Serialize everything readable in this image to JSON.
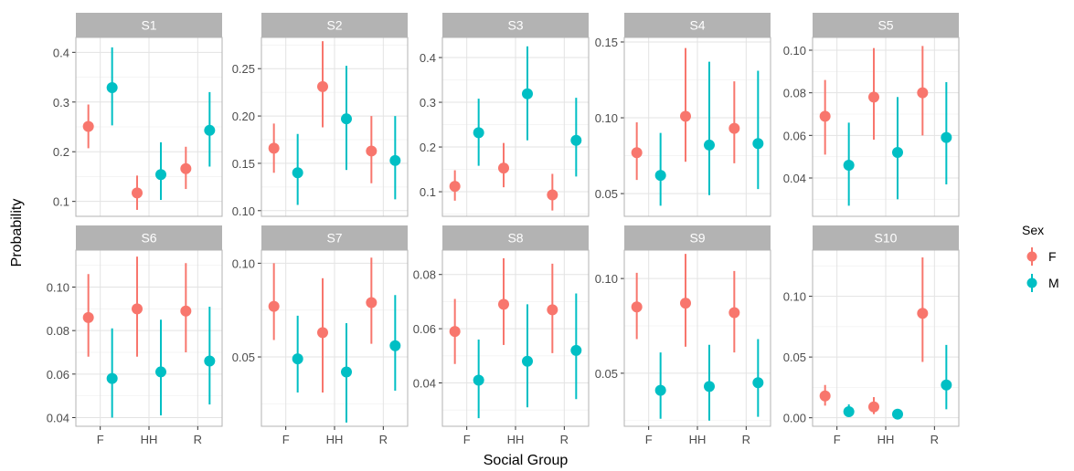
{
  "figure": {
    "ylabel": "Probability",
    "xlabel": "Social Group",
    "legend_title": "Sex",
    "legend_items": [
      {
        "label": "F",
        "color": "#F8766D"
      },
      {
        "label": "M",
        "color": "#00BFC4"
      }
    ]
  },
  "chart_data": {
    "type": "scatter",
    "subtype": "pointrange-faceted",
    "x_categories": [
      "F",
      "HH",
      "R"
    ],
    "series_names": [
      "F",
      "M"
    ],
    "legend_placement": "right",
    "grid": true,
    "panels": [
      {
        "title": "S1",
        "ylim": [
          0.07,
          0.43
        ],
        "yticks": [
          0.1,
          0.2,
          0.3,
          0.4
        ],
        "tick_labels": [
          "0.1",
          "0.2",
          "0.3",
          "0.4"
        ],
        "F": [
          {
            "x": "F",
            "y": 0.251,
            "lo": 0.207,
            "hi": 0.295
          },
          {
            "x": "HH",
            "y": 0.117,
            "lo": 0.083,
            "hi": 0.152
          },
          {
            "x": "R",
            "y": 0.166,
            "lo": 0.125,
            "hi": 0.21
          }
        ],
        "M": [
          {
            "x": "F",
            "y": 0.329,
            "lo": 0.253,
            "hi": 0.41
          },
          {
            "x": "HH",
            "y": 0.154,
            "lo": 0.103,
            "hi": 0.219
          },
          {
            "x": "R",
            "y": 0.243,
            "lo": 0.17,
            "hi": 0.32
          }
        ]
      },
      {
        "title": "S2",
        "ylim": [
          0.094,
          0.283
        ],
        "yticks": [
          0.1,
          0.15,
          0.2,
          0.25
        ],
        "tick_labels": [
          "0.10",
          "0.15",
          "0.20",
          "0.25"
        ],
        "F": [
          {
            "x": "F",
            "y": 0.166,
            "lo": 0.14,
            "hi": 0.192
          },
          {
            "x": "HH",
            "y": 0.231,
            "lo": 0.188,
            "hi": 0.279
          },
          {
            "x": "R",
            "y": 0.163,
            "lo": 0.129,
            "hi": 0.2
          }
        ],
        "M": [
          {
            "x": "F",
            "y": 0.14,
            "lo": 0.106,
            "hi": 0.181
          },
          {
            "x": "HH",
            "y": 0.197,
            "lo": 0.143,
            "hi": 0.253
          },
          {
            "x": "R",
            "y": 0.153,
            "lo": 0.112,
            "hi": 0.2
          }
        ]
      },
      {
        "title": "S3",
        "ylim": [
          0.045,
          0.445
        ],
        "yticks": [
          0.1,
          0.2,
          0.3,
          0.4
        ],
        "tick_labels": [
          "0.1",
          "0.2",
          "0.3",
          "0.4"
        ],
        "F": [
          {
            "x": "F",
            "y": 0.112,
            "lo": 0.08,
            "hi": 0.148
          },
          {
            "x": "HH",
            "y": 0.153,
            "lo": 0.11,
            "hi": 0.209
          },
          {
            "x": "R",
            "y": 0.093,
            "lo": 0.058,
            "hi": 0.14
          }
        ],
        "M": [
          {
            "x": "F",
            "y": 0.232,
            "lo": 0.158,
            "hi": 0.308
          },
          {
            "x": "HH",
            "y": 0.319,
            "lo": 0.215,
            "hi": 0.425
          },
          {
            "x": "R",
            "y": 0.215,
            "lo": 0.134,
            "hi": 0.31
          }
        ]
      },
      {
        "title": "S4",
        "ylim": [
          0.035,
          0.153
        ],
        "yticks": [
          0.05,
          0.1,
          0.15
        ],
        "tick_labels": [
          "0.05",
          "0.10",
          "0.15"
        ],
        "F": [
          {
            "x": "F",
            "y": 0.077,
            "lo": 0.059,
            "hi": 0.097
          },
          {
            "x": "HH",
            "y": 0.101,
            "lo": 0.071,
            "hi": 0.146
          },
          {
            "x": "R",
            "y": 0.093,
            "lo": 0.07,
            "hi": 0.124
          }
        ],
        "M": [
          {
            "x": "F",
            "y": 0.062,
            "lo": 0.042,
            "hi": 0.09
          },
          {
            "x": "HH",
            "y": 0.082,
            "lo": 0.049,
            "hi": 0.137
          },
          {
            "x": "R",
            "y": 0.083,
            "lo": 0.053,
            "hi": 0.131
          }
        ]
      },
      {
        "title": "S5",
        "ylim": [
          0.022,
          0.106
        ],
        "yticks": [
          0.04,
          0.06,
          0.08,
          0.1
        ],
        "tick_labels": [
          "0.04",
          "0.06",
          "0.08",
          "0.10"
        ],
        "F": [
          {
            "x": "F",
            "y": 0.069,
            "lo": 0.051,
            "hi": 0.086
          },
          {
            "x": "HH",
            "y": 0.078,
            "lo": 0.058,
            "hi": 0.101
          },
          {
            "x": "R",
            "y": 0.08,
            "lo": 0.06,
            "hi": 0.102
          }
        ],
        "M": [
          {
            "x": "F",
            "y": 0.046,
            "lo": 0.027,
            "hi": 0.066
          },
          {
            "x": "HH",
            "y": 0.052,
            "lo": 0.03,
            "hi": 0.078
          },
          {
            "x": "R",
            "y": 0.059,
            "lo": 0.037,
            "hi": 0.085
          }
        ]
      },
      {
        "title": "S6",
        "ylim": [
          0.036,
          0.117
        ],
        "yticks": [
          0.04,
          0.06,
          0.08,
          0.1
        ],
        "tick_labels": [
          "0.04",
          "0.06",
          "0.08",
          "0.10"
        ],
        "F": [
          {
            "x": "F",
            "y": 0.086,
            "lo": 0.068,
            "hi": 0.106
          },
          {
            "x": "HH",
            "y": 0.09,
            "lo": 0.068,
            "hi": 0.114
          },
          {
            "x": "R",
            "y": 0.089,
            "lo": 0.07,
            "hi": 0.111
          }
        ],
        "M": [
          {
            "x": "F",
            "y": 0.058,
            "lo": 0.04,
            "hi": 0.081
          },
          {
            "x": "HH",
            "y": 0.061,
            "lo": 0.041,
            "hi": 0.085
          },
          {
            "x": "R",
            "y": 0.066,
            "lo": 0.046,
            "hi": 0.091
          }
        ]
      },
      {
        "title": "S7",
        "ylim": [
          0.013,
          0.107
        ],
        "yticks": [
          0.05,
          0.1
        ],
        "tick_labels": [
          "0.05",
          "0.10"
        ],
        "F": [
          {
            "x": "F",
            "y": 0.077,
            "lo": 0.059,
            "hi": 0.1
          },
          {
            "x": "HH",
            "y": 0.063,
            "lo": 0.031,
            "hi": 0.092
          },
          {
            "x": "R",
            "y": 0.079,
            "lo": 0.057,
            "hi": 0.103
          }
        ],
        "M": [
          {
            "x": "F",
            "y": 0.049,
            "lo": 0.031,
            "hi": 0.072
          },
          {
            "x": "HH",
            "y": 0.042,
            "lo": 0.015,
            "hi": 0.068
          },
          {
            "x": "R",
            "y": 0.056,
            "lo": 0.032,
            "hi": 0.083
          }
        ]
      },
      {
        "title": "S8",
        "ylim": [
          0.024,
          0.089
        ],
        "yticks": [
          0.04,
          0.06,
          0.08
        ],
        "tick_labels": [
          "0.04",
          "0.06",
          "0.08"
        ],
        "F": [
          {
            "x": "F",
            "y": 0.059,
            "lo": 0.047,
            "hi": 0.071
          },
          {
            "x": "HH",
            "y": 0.069,
            "lo": 0.054,
            "hi": 0.086
          },
          {
            "x": "R",
            "y": 0.067,
            "lo": 0.051,
            "hi": 0.084
          }
        ],
        "M": [
          {
            "x": "F",
            "y": 0.041,
            "lo": 0.027,
            "hi": 0.056
          },
          {
            "x": "HH",
            "y": 0.048,
            "lo": 0.031,
            "hi": 0.069
          },
          {
            "x": "R",
            "y": 0.052,
            "lo": 0.034,
            "hi": 0.073
          }
        ]
      },
      {
        "title": "S9",
        "ylim": [
          0.022,
          0.115
        ],
        "yticks": [
          0.05,
          0.1
        ],
        "tick_labels": [
          "0.05",
          "0.10"
        ],
        "F": [
          {
            "x": "F",
            "y": 0.085,
            "lo": 0.068,
            "hi": 0.103
          },
          {
            "x": "HH",
            "y": 0.087,
            "lo": 0.064,
            "hi": 0.113
          },
          {
            "x": "R",
            "y": 0.082,
            "lo": 0.061,
            "hi": 0.104
          }
        ],
        "M": [
          {
            "x": "F",
            "y": 0.041,
            "lo": 0.026,
            "hi": 0.061
          },
          {
            "x": "HH",
            "y": 0.043,
            "lo": 0.025,
            "hi": 0.065
          },
          {
            "x": "R",
            "y": 0.045,
            "lo": 0.027,
            "hi": 0.068
          }
        ]
      },
      {
        "title": "S10",
        "ylim": [
          -0.007,
          0.138
        ],
        "yticks": [
          0.0,
          0.05,
          0.1
        ],
        "tick_labels": [
          "0.00",
          "0.05",
          "0.10"
        ],
        "F": [
          {
            "x": "F",
            "y": 0.018,
            "lo": 0.01,
            "hi": 0.027
          },
          {
            "x": "HH",
            "y": 0.009,
            "lo": 0.003,
            "hi": 0.017
          },
          {
            "x": "R",
            "y": 0.086,
            "lo": 0.046,
            "hi": 0.132
          }
        ],
        "M": [
          {
            "x": "F",
            "y": 0.005,
            "lo": 0.002,
            "hi": 0.011
          },
          {
            "x": "HH",
            "y": 0.003,
            "lo": 0.001,
            "hi": 0.006
          },
          {
            "x": "R",
            "y": 0.027,
            "lo": 0.007,
            "hi": 0.06
          }
        ]
      }
    ]
  }
}
